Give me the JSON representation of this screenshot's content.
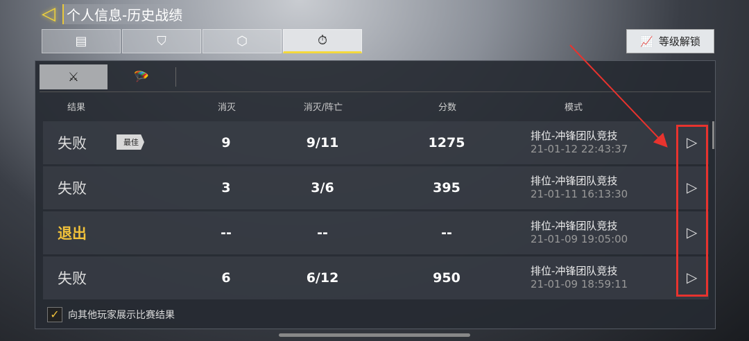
{
  "header": {
    "back_icon": "◁",
    "title": "个人信息-历史战绩"
  },
  "tabs": [
    {
      "icon": "clipboard-icon",
      "glyph": "▤"
    },
    {
      "icon": "shield-icon",
      "glyph": "⛉"
    },
    {
      "icon": "emblem-icon",
      "glyph": "⬡"
    },
    {
      "icon": "stopwatch-icon",
      "glyph": "⏱"
    }
  ],
  "unlock": {
    "label": "等级解锁",
    "glyph": "📈"
  },
  "subtabs": [
    {
      "icon": "crossed-flags-icon",
      "glyph": "⚔"
    },
    {
      "icon": "parachute-icon",
      "glyph": "🪂"
    }
  ],
  "columns": {
    "result": "结果",
    "kills": "消灭",
    "kd": "消灭/阵亡",
    "score": "分数",
    "mode": "模式"
  },
  "rows": [
    {
      "result": "失败",
      "badge": "最佳",
      "kills": "9",
      "kd": "9/11",
      "score": "1275",
      "mode": "排位-冲锋团队竞技",
      "time": "21-01-12 22:43:37"
    },
    {
      "result": "失败",
      "kills": "3",
      "kd": "3/6",
      "score": "395",
      "mode": "排位-冲锋团队竞技",
      "time": "21-01-11 16:13:30"
    },
    {
      "result": "退出",
      "kills": "--",
      "kd": "--",
      "score": "--",
      "mode": "排位-冲锋团队竞技",
      "time": "21-01-09 19:05:00"
    },
    {
      "result": "失败",
      "kills": "6",
      "kd": "6/12",
      "score": "950",
      "mode": "排位-冲锋团队竞技",
      "time": "21-01-09 18:59:11"
    }
  ],
  "play_glyph": "▷",
  "show_results": {
    "label": "向其他玩家展示比赛结果",
    "checked": true,
    "glyph": "✓"
  },
  "colors": {
    "accent": "#f2c23a",
    "annotation": "#e8332e"
  }
}
